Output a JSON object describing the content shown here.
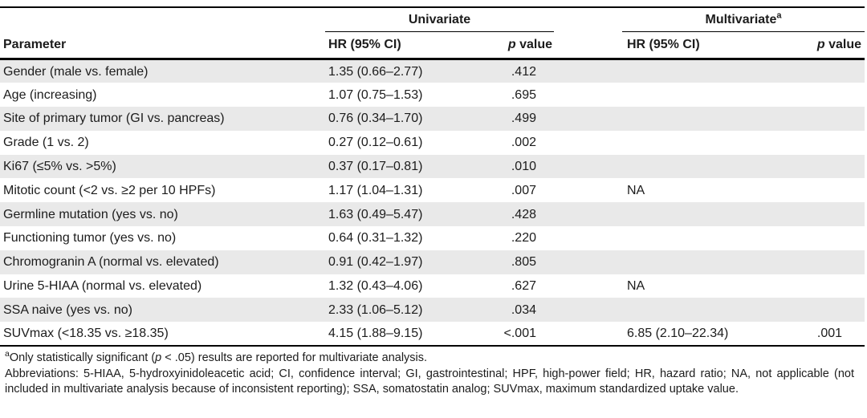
{
  "table": {
    "header": {
      "parameter": "Parameter",
      "univariate": "Univariate",
      "multivariate": "Multivariate",
      "multivariate_footnote_marker": "a",
      "hr_ci": "HR (95% CI)",
      "p_label_italic": "p",
      "p_label_rest": " value"
    },
    "rows": [
      {
        "parameter": "Gender (male vs. female)",
        "uni_hr": "1.35 (0.66–2.77)",
        "uni_p": ".412",
        "multi_hr": "",
        "multi_p": ""
      },
      {
        "parameter": "Age (increasing)",
        "uni_hr": "1.07 (0.75–1.53)",
        "uni_p": ".695",
        "multi_hr": "",
        "multi_p": ""
      },
      {
        "parameter": "Site of primary tumor (GI vs. pancreas)",
        "uni_hr": "0.76 (0.34–1.70)",
        "uni_p": ".499",
        "multi_hr": "",
        "multi_p": ""
      },
      {
        "parameter": "Grade (1 vs. 2)",
        "uni_hr": "0.27 (0.12–0.61)",
        "uni_p": ".002",
        "multi_hr": "",
        "multi_p": ""
      },
      {
        "parameter": "Ki67 (≤5% vs. >5%)",
        "uni_hr": "0.37 (0.17–0.81)",
        "uni_p": ".010",
        "multi_hr": "",
        "multi_p": ""
      },
      {
        "parameter": "Mitotic count (<2 vs. ≥2 per 10 HPFs)",
        "uni_hr": "1.17 (1.04–1.31)",
        "uni_p": ".007",
        "multi_hr": "NA",
        "multi_p": ""
      },
      {
        "parameter": "Germline mutation (yes vs. no)",
        "uni_hr": "1.63 (0.49–5.47)",
        "uni_p": ".428",
        "multi_hr": "",
        "multi_p": ""
      },
      {
        "parameter": "Functioning tumor (yes vs. no)",
        "uni_hr": "0.64 (0.31–1.32)",
        "uni_p": ".220",
        "multi_hr": "",
        "multi_p": ""
      },
      {
        "parameter": "Chromogranin A (normal vs. elevated)",
        "uni_hr": "0.91 (0.42–1.97)",
        "uni_p": ".805",
        "multi_hr": "",
        "multi_p": ""
      },
      {
        "parameter": "Urine 5-HIAA (normal vs. elevated)",
        "uni_hr": "1.32 (0.43–4.06)",
        "uni_p": ".627",
        "multi_hr": "NA",
        "multi_p": ""
      },
      {
        "parameter": "SSA naive (yes vs. no)",
        "uni_hr": "2.33 (1.06–5.12)",
        "uni_p": ".034",
        "multi_hr": "",
        "multi_p": ""
      },
      {
        "parameter": "SUVmax (<18.35 vs. ≥18.35)",
        "uni_hr": "4.15 (1.88–9.15)",
        "uni_p": "<.001",
        "multi_hr": "6.85 (2.10–22.34)",
        "multi_p": ".001"
      }
    ]
  },
  "footnotes": {
    "significance_marker": "a",
    "significance_part1": "Only statistically significant (",
    "significance_p_italic": "p",
    "significance_part2": " < .05) results are reported for multivariate analysis.",
    "abbreviations": "Abbreviations: 5-HIAA, 5-hydroxyinidoleacetic acid; CI, confidence interval; GI, gastrointestinal; HPF, high-power field; HR, hazard ratio; NA, not applicable (not included in multivariate analysis because of inconsistent reporting); SSA, somatostatin analog; SUVmax, maximum standardized uptake value."
  },
  "colors": {
    "row_shade": "#e9e9e9",
    "rule": "#000000",
    "text": "#1c1c1c"
  }
}
